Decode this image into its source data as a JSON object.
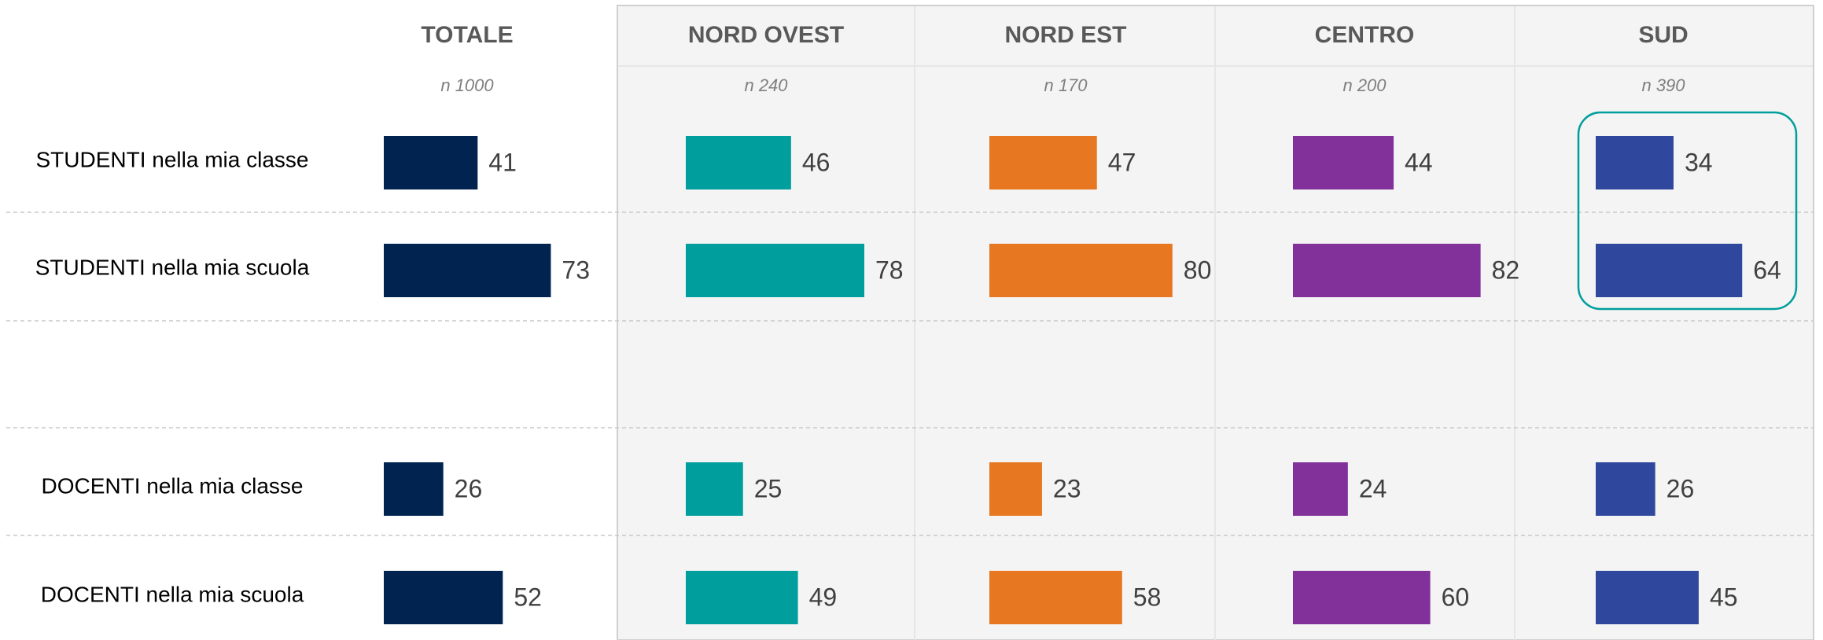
{
  "chart_data": {
    "type": "bar",
    "categories": [
      "STUDENTI nella mia classe",
      "STUDENTI nella mia scuola",
      "DOCENTI nella mia classe",
      "DOCENTI nella mia scuola"
    ],
    "series": [
      {
        "name": "TOTALE",
        "subtitle": "n 1000",
        "color": "#00234f",
        "values": [
          41,
          73,
          26,
          52
        ]
      },
      {
        "name": "NORD OVEST",
        "subtitle": "n 240",
        "color": "#009e9c",
        "values": [
          46,
          78,
          25,
          49
        ]
      },
      {
        "name": "NORD EST",
        "subtitle": "n 170",
        "color": "#e87722",
        "values": [
          47,
          80,
          23,
          58
        ]
      },
      {
        "name": "CENTRO",
        "subtitle": "n 200",
        "color": "#82309a",
        "values": [
          44,
          82,
          24,
          60
        ]
      },
      {
        "name": "SUD",
        "subtitle": "n 390",
        "color": "#30479e",
        "values": [
          34,
          64,
          26,
          45
        ]
      }
    ]
  }
}
